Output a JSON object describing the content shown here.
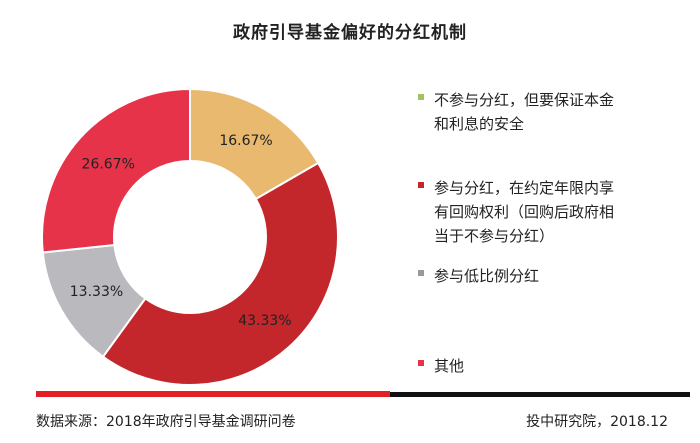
{
  "chart_data": {
    "type": "pie",
    "title": "政府引导基金偏好的分红机制",
    "categories": [
      "不参与分红，但要保证本金和利息的安全",
      "参与分红，在约定年限内享有回购权利（回购后政府相当于不参与分红）",
      "参与低比例分红",
      "其他"
    ],
    "values": [
      16.67,
      43.33,
      13.33,
      26.67
    ],
    "value_labels": [
      "16.67%",
      "43.33%",
      "13.33%",
      "26.67%"
    ],
    "colors": [
      "#E8B96E",
      "#C3272B",
      "#B9B9BE",
      "#E7334A"
    ],
    "legend_colors": [
      "#9DC45F",
      "#C3272B",
      "#9A9A9A",
      "#E7334A"
    ],
    "legend_placement": "right",
    "donut": true
  },
  "legend": {
    "items": [
      {
        "label_lines": [
          "不参与分红，但要保证本金",
          "和利息的安全"
        ]
      },
      {
        "label_lines": [
          "参与分红，在约定年限内享",
          "有回购权利（回购后政府相",
          "当于不参与分红）"
        ]
      },
      {
        "label_lines": [
          "参与低比例分红"
        ]
      },
      {
        "label_lines": [
          "其他"
        ]
      }
    ]
  },
  "footer": {
    "source": "数据来源：2018年政府引导基金调研问卷",
    "credit": "投中研究院，2018.12"
  },
  "accent": {
    "red": "#E31E24",
    "black": "#111111"
  }
}
